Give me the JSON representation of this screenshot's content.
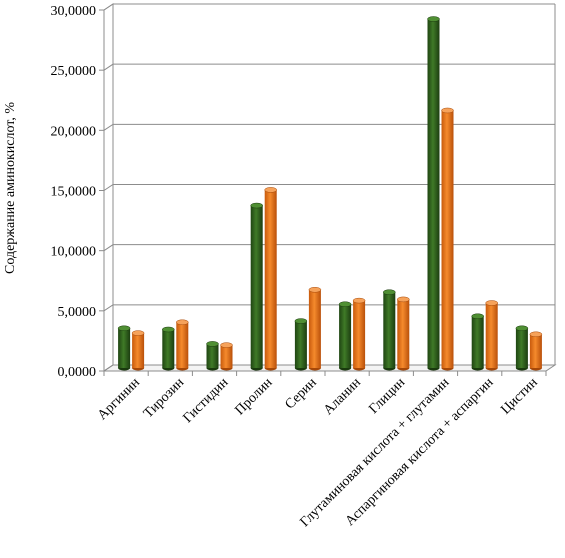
{
  "chart_data": {
    "type": "bar",
    "title": "",
    "ylabel": "Содержание аминокислот, %",
    "xlabel": "",
    "ylim": [
      0,
      30
    ],
    "y_ticks": [
      0,
      5,
      10,
      15,
      20,
      25,
      30
    ],
    "y_tick_labels": [
      "0,0000",
      "5,0000",
      "10,0000",
      "15,0000",
      "20,0000",
      "25,0000",
      "30,0000"
    ],
    "categories": [
      "Аргинин",
      "Тирозин",
      "Гистидин",
      "Пролин",
      "Серин",
      "Аланин",
      "Глицин",
      "Глутаминовая кислота + глутамин",
      "Аспаргиновая кислота + аспаргин",
      "Цистин"
    ],
    "series": [
      {
        "values": [
          3.3,
          3.2,
          2.0,
          13.5,
          3.9,
          5.3,
          6.3,
          29.0,
          4.3,
          3.3
        ]
      },
      {
        "values": [
          2.9,
          3.8,
          1.9,
          14.8,
          6.5,
          5.6,
          5.7,
          21.4,
          5.4,
          2.8
        ]
      }
    ],
    "colors": [
      "#2d5a1c",
      "#e8761c"
    ],
    "grid": true,
    "style": "3d-cylinder",
    "legend": "none"
  }
}
